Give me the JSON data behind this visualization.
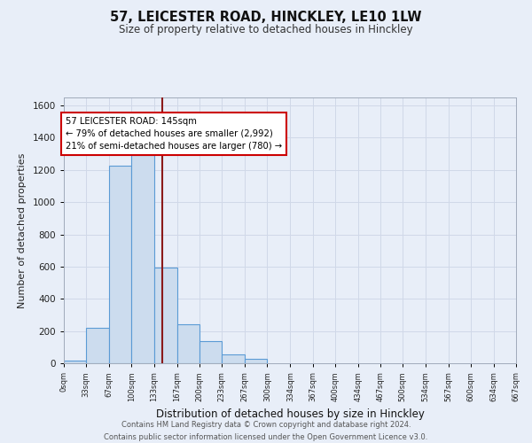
{
  "title": "57, LEICESTER ROAD, HINCKLEY, LE10 1LW",
  "subtitle": "Size of property relative to detached houses in Hinckley",
  "xlabel": "Distribution of detached houses by size in Hinckley",
  "ylabel": "Number of detached properties",
  "bin_edges": [
    0,
    33,
    67,
    100,
    133,
    167,
    200,
    233,
    267,
    300,
    334,
    367,
    400,
    434,
    467,
    500,
    534,
    567,
    600,
    634,
    667
  ],
  "bar_heights": [
    15,
    220,
    1225,
    1290,
    595,
    240,
    140,
    55,
    25,
    0,
    0,
    0,
    0,
    0,
    0,
    0,
    0,
    0,
    0,
    0
  ],
  "bar_color": "#ccdcee",
  "bar_edge_color": "#5b9bd5",
  "property_size": 145,
  "vline_color": "#8b1a1a",
  "annotation_title": "57 LEICESTER ROAD: 145sqm",
  "annotation_line1": "← 79% of detached houses are smaller (2,992)",
  "annotation_line2": "21% of semi-detached houses are larger (780) →",
  "annotation_box_color": "#ffffff",
  "annotation_box_edge": "#cc0000",
  "ylim": [
    0,
    1650
  ],
  "yticks": [
    0,
    200,
    400,
    600,
    800,
    1000,
    1200,
    1400,
    1600
  ],
  "footer_line1": "Contains HM Land Registry data © Crown copyright and database right 2024.",
  "footer_line2": "Contains public sector information licensed under the Open Government Licence v3.0.",
  "bg_color": "#e8eef8",
  "plot_bg_color": "#e8eef8",
  "grid_color": "#d0d8e8"
}
